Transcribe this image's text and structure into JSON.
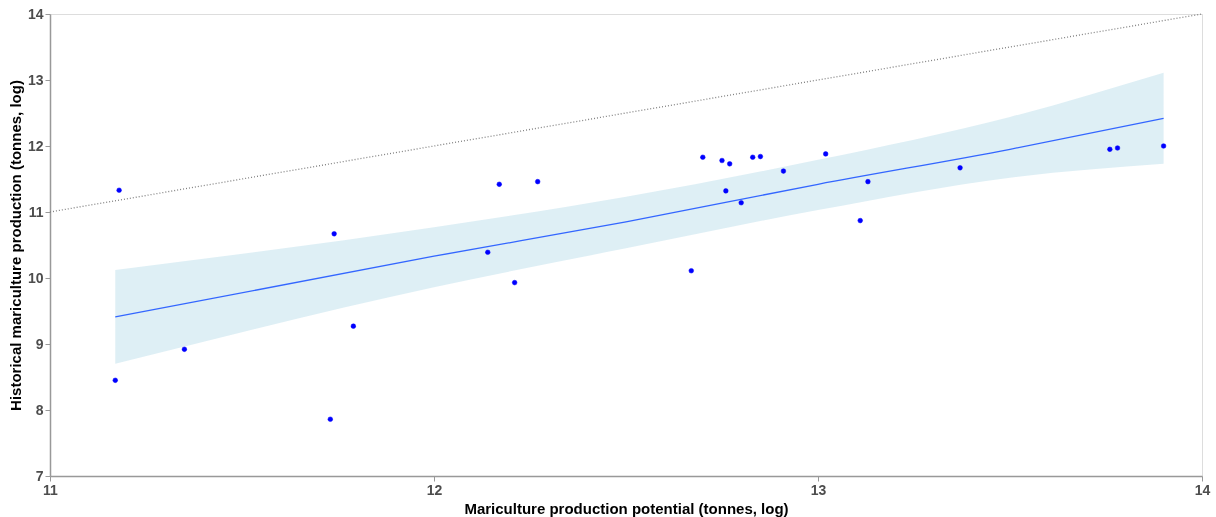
{
  "chart_data": {
    "type": "scatter",
    "xlabel": "Mariculture production potential (tonnes, log)",
    "ylabel": "Historical mariculture production (tonnes, log)",
    "xlim": [
      11,
      14
    ],
    "ylim": [
      7,
      14
    ],
    "xticks": [
      11,
      12,
      13,
      14
    ],
    "yticks": [
      7,
      8,
      9,
      10,
      11,
      12,
      13,
      14
    ],
    "grid": false,
    "marker": "circle",
    "series": [
      {
        "type": "scatter",
        "color": "#0000ff",
        "x": [
          11.17,
          11.18,
          11.35,
          11.73,
          11.74,
          11.79,
          12.14,
          12.17,
          12.21,
          12.27,
          12.67,
          12.7,
          12.75,
          12.77,
          12.76,
          12.8,
          12.83,
          12.85,
          12.91,
          13.02,
          13.11,
          13.13,
          13.37,
          13.76,
          13.78,
          13.9
        ],
        "values": [
          8.45,
          11.33,
          8.92,
          7.86,
          10.67,
          9.27,
          10.39,
          11.42,
          9.93,
          11.46,
          10.11,
          11.83,
          11.78,
          11.73,
          11.32,
          11.14,
          11.83,
          11.84,
          11.62,
          11.88,
          10.87,
          11.46,
          11.67,
          11.95,
          11.97,
          12.0
        ]
      },
      {
        "type": "line",
        "color": "#3366ff",
        "line_style": "solid",
        "marker": "none",
        "x": [
          11.17,
          12.0,
          12.5,
          13.0,
          13.5,
          13.9
        ],
        "values": [
          9.41,
          10.33,
          10.85,
          11.42,
          11.95,
          12.42
        ],
        "lower": [
          8.7,
          9.86,
          10.45,
          11.03,
          11.52,
          11.73
        ],
        "upper": [
          10.12,
          10.77,
          11.23,
          11.79,
          12.44,
          13.11
        ]
      },
      {
        "type": "line",
        "color": "#808080",
        "line_style": "dotted",
        "marker": "none",
        "x": [
          11,
          14
        ],
        "values": [
          11,
          14
        ]
      }
    ]
  }
}
